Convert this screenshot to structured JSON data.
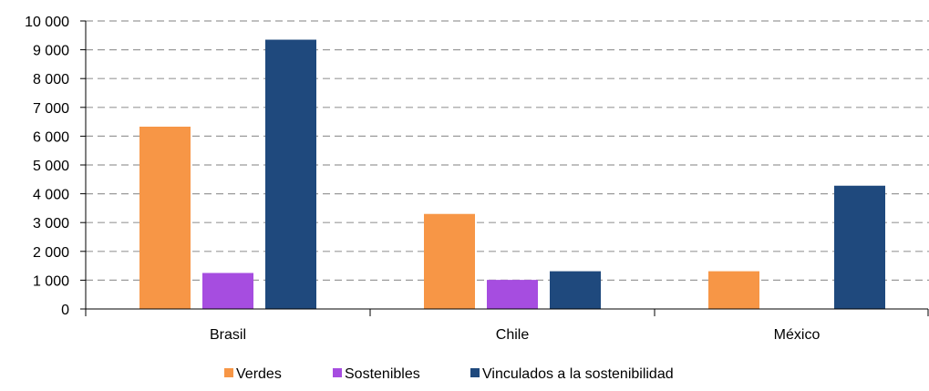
{
  "chart_data": {
    "type": "bar",
    "title": "",
    "xlabel": "",
    "ylabel": "",
    "categories": [
      "Brasil",
      "Chile",
      "México"
    ],
    "series": [
      {
        "name": "Verdes",
        "values": [
          6330,
          3300,
          1310
        ],
        "color": "#F79646"
      },
      {
        "name": "Sostenibles",
        "values": [
          1250,
          1010,
          0
        ],
        "color": "#A64DE0"
      },
      {
        "name": "Vinculados a la sostenibilidad",
        "values": [
          9350,
          1310,
          4280
        ],
        "color": "#1F497D"
      }
    ],
    "ylim": [
      0,
      10000
    ],
    "yticks": [
      0,
      1000,
      2000,
      3000,
      4000,
      5000,
      6000,
      7000,
      8000,
      9000,
      10000
    ],
    "ytick_labels": [
      "0",
      "1 000",
      "2 000",
      "3 000",
      "4 000",
      "5 000",
      "6 000",
      "7 000",
      "8 000",
      "9 000",
      "10 000"
    ],
    "grid": "horizontal dashed",
    "legend_position": "bottom"
  }
}
